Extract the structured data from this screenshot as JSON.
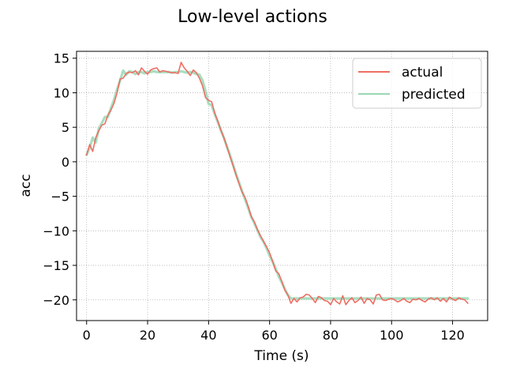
{
  "chart_data": {
    "type": "line",
    "title": "Low-level actions",
    "xlabel": "Time (s)",
    "ylabel": "acc",
    "xlim": [
      -3.3,
      131.5
    ],
    "ylim": [
      -23.0,
      16.0
    ],
    "xticks": [
      0,
      20,
      40,
      60,
      80,
      100,
      120
    ],
    "yticks": [
      15,
      10,
      5,
      0,
      -5,
      -10,
      -15,
      -20
    ],
    "xtick_labels": [
      "0",
      "20",
      "40",
      "60",
      "80",
      "100",
      "120"
    ],
    "ytick_labels": [
      "15",
      "10",
      "5",
      "0",
      "−5",
      "−10",
      "−15",
      "−20"
    ],
    "grid": true,
    "legend_position": "top-right",
    "series": [
      {
        "name": "actual",
        "color": "#ee6e63",
        "x": [
          0,
          1,
          2,
          3,
          4,
          5,
          6,
          7,
          8,
          9,
          10,
          11,
          12,
          13,
          14,
          15,
          16,
          17,
          18,
          19,
          20,
          21,
          22,
          23,
          24,
          25,
          26,
          27,
          28,
          29,
          30,
          31,
          32,
          33,
          34,
          35,
          36,
          37,
          38,
          39,
          40,
          41,
          42,
          43,
          44,
          45,
          46,
          47,
          48,
          49,
          50,
          51,
          52,
          53,
          54,
          55,
          56,
          57,
          58,
          59,
          60,
          61,
          62,
          63,
          64,
          65,
          66,
          67,
          68,
          69,
          70,
          71,
          72,
          73,
          74,
          75,
          76,
          77,
          78,
          79,
          80,
          81,
          82,
          83,
          84,
          85,
          86,
          87,
          88,
          89,
          90,
          91,
          92,
          93,
          94,
          95,
          96,
          97,
          98,
          99,
          100,
          101,
          102,
          103,
          104,
          105,
          106,
          107,
          108,
          109,
          110,
          111,
          112,
          113,
          114,
          115,
          116,
          117,
          118,
          119,
          120,
          121,
          122,
          123,
          124,
          125
        ],
        "y": [
          1.0,
          2.5,
          1.5,
          3.5,
          4.5,
          5.3,
          5.5,
          6.8,
          7.5,
          8.5,
          10.0,
          12.0,
          12.1,
          12.8,
          13.0,
          12.9,
          13.2,
          12.6,
          13.6,
          13.1,
          12.7,
          13.3,
          13.5,
          13.6,
          13.0,
          13.2,
          13.1,
          13.0,
          12.9,
          12.9,
          12.8,
          14.4,
          13.6,
          13.1,
          12.5,
          13.3,
          12.9,
          12.1,
          11.0,
          9.3,
          8.9,
          8.7,
          7.1,
          5.9,
          4.6,
          3.5,
          2.2,
          0.8,
          -0.5,
          -1.9,
          -3.2,
          -4.4,
          -5.2,
          -6.5,
          -7.9,
          -8.7,
          -9.8,
          -10.7,
          -11.5,
          -12.3,
          -13.2,
          -14.4,
          -15.8,
          -16.2,
          -17.3,
          -18.6,
          -19.3,
          -20.5,
          -19.8,
          -20.3,
          -19.7,
          -19.6,
          -19.2,
          -19.3,
          -19.8,
          -20.4,
          -19.5,
          -19.7,
          -20.1,
          -20.2,
          -20.7,
          -19.8,
          -20.3,
          -20.6,
          -19.4,
          -20.7,
          -20.1,
          -19.7,
          -20.4,
          -20.1,
          -19.6,
          -20.5,
          -19.8,
          -20.0,
          -20.6,
          -19.3,
          -19.2,
          -20.0,
          -20.1,
          -19.9,
          -19.8,
          -20.0,
          -20.3,
          -20.1,
          -19.8,
          -20.2,
          -20.4,
          -19.9,
          -20.0,
          -19.8,
          -20.1,
          -20.3,
          -19.9,
          -19.7,
          -20.0,
          -19.7,
          -20.2,
          -19.8,
          -20.3,
          -19.6,
          -19.9,
          -20.1,
          -19.7,
          -19.9,
          -20.0,
          -20.5
        ]
      },
      {
        "name": "predicted",
        "color": "#9ad8b5",
        "x": [
          0,
          1,
          2,
          3,
          4,
          5,
          6,
          7,
          8,
          9,
          10,
          11,
          12,
          13,
          14,
          15,
          16,
          17,
          18,
          19,
          20,
          21,
          22,
          23,
          24,
          25,
          26,
          27,
          28,
          29,
          30,
          31,
          32,
          33,
          34,
          35,
          36,
          37,
          38,
          39,
          40,
          41,
          42,
          43,
          44,
          45,
          46,
          47,
          48,
          49,
          50,
          51,
          52,
          53,
          54,
          55,
          56,
          57,
          58,
          59,
          60,
          61,
          62,
          63,
          64,
          65,
          66,
          67,
          68,
          69,
          70,
          71,
          72,
          73,
          74,
          75,
          76,
          77,
          78,
          79,
          80,
          81,
          82,
          83,
          84,
          85,
          86,
          87,
          88,
          89,
          90,
          91,
          92,
          93,
          94,
          95,
          96,
          97,
          98,
          99,
          100,
          101,
          102,
          103,
          104,
          105,
          106,
          107,
          108,
          109,
          110,
          111,
          112,
          113,
          114,
          115,
          116,
          117,
          118,
          119,
          120,
          121,
          122,
          123,
          124,
          125
        ],
        "y": [
          1.0,
          2.0,
          3.5,
          2.8,
          4.8,
          5.6,
          6.5,
          6.5,
          7.8,
          9.0,
          10.5,
          11.8,
          13.2,
          12.6,
          13.1,
          13.0,
          12.7,
          13.0,
          13.0,
          12.8,
          13.0,
          13.0,
          13.1,
          13.0,
          13.0,
          13.0,
          13.0,
          13.0,
          12.9,
          13.0,
          13.0,
          13.1,
          13.0,
          12.9,
          13.0,
          12.9,
          12.7,
          12.6,
          11.8,
          10.2,
          8.4,
          8.2,
          6.9,
          5.8,
          4.6,
          3.5,
          2.2,
          1.0,
          -0.4,
          -1.8,
          -3.0,
          -4.3,
          -5.5,
          -6.7,
          -8.0,
          -8.9,
          -9.9,
          -10.9,
          -11.6,
          -12.5,
          -13.6,
          -14.5,
          -15.5,
          -16.6,
          -17.5,
          -18.4,
          -19.3,
          -19.8,
          -19.8,
          -19.8,
          -19.8,
          -19.8,
          -19.8,
          -19.8,
          -19.8,
          -19.8,
          -19.8,
          -19.8,
          -19.8,
          -19.8,
          -19.8,
          -19.8,
          -19.8,
          -19.8,
          -19.8,
          -19.8,
          -19.8,
          -19.8,
          -19.8,
          -19.8,
          -19.8,
          -19.8,
          -19.8,
          -19.8,
          -19.8,
          -19.8,
          -19.8,
          -19.8,
          -19.8,
          -19.8,
          -19.8,
          -19.8,
          -19.8,
          -19.8,
          -19.8,
          -19.8,
          -19.8,
          -19.8,
          -19.8,
          -19.8,
          -19.8,
          -19.8,
          -19.8,
          -19.8,
          -19.8,
          -19.8,
          -19.8,
          -19.8,
          -19.8,
          -19.8,
          -19.8,
          -19.8,
          -19.8,
          -19.8,
          -19.8,
          -19.8
        ]
      }
    ]
  }
}
